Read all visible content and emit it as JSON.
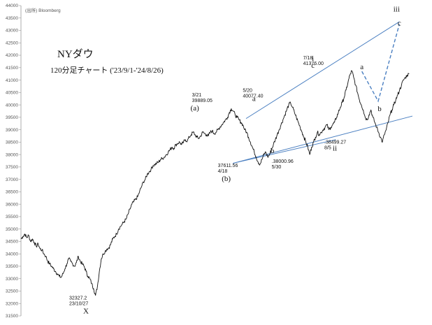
{
  "chart_data": {
    "type": "line",
    "title": "NYダウ",
    "subtitle": "120分足チャート ('23/9/1-'24/8/26)",
    "source": "(出所) Bloomberg",
    "xlabel": "",
    "ylabel": "",
    "ylim": [
      31500,
      44000
    ],
    "y_ticks": [
      31500,
      32000,
      32500,
      33000,
      33500,
      34000,
      34500,
      35000,
      35500,
      36000,
      36500,
      37000,
      37500,
      38000,
      38500,
      39000,
      39500,
      40000,
      40500,
      41000,
      41500,
      42000,
      42500,
      43000,
      43500,
      44000
    ],
    "y_tick_labels": [
      "31500",
      "32000",
      "32500",
      "33000",
      "33500",
      "34000",
      "34500",
      "35000",
      "35500",
      "36000",
      "36500",
      "37000",
      "37500",
      "38000",
      "38500",
      "39000",
      "39500",
      "40000",
      "40500",
      "41000",
      "41500",
      "42000",
      "42500",
      "43000",
      "43500",
      "44000"
    ],
    "series": [
      {
        "values": [
          34600,
          34700,
          34800,
          34650,
          34750,
          34500,
          34600,
          34450,
          34300,
          34400,
          34200,
          34150,
          34000,
          33900,
          33700,
          33600,
          33500,
          33400,
          33300,
          33200,
          33100,
          33050,
          33200,
          33400,
          33600,
          33800,
          33700,
          33600,
          33500,
          33650,
          33900,
          33700,
          33600,
          33500,
          33300,
          33100,
          33000,
          32800,
          32600,
          32327,
          32700,
          33300,
          33800,
          34000,
          34100,
          34200,
          34250,
          34400,
          34600,
          34700,
          34800,
          35000,
          35100,
          35200,
          35300,
          35400,
          35600,
          35800,
          36000,
          36100,
          36200,
          36300,
          36500,
          36700,
          36900,
          37000,
          37200,
          37300,
          37400,
          37550,
          37600,
          37650,
          37700,
          37800,
          37850,
          37900,
          38000,
          38100,
          38200,
          38300,
          38250,
          38400,
          38450,
          38500,
          38400,
          38500,
          38600,
          38550,
          38700,
          38800,
          38900,
          38800,
          38700,
          38650,
          38750,
          38900,
          38850,
          38800,
          38750,
          38900,
          38950,
          38850,
          38900,
          39000,
          39100,
          39200,
          39300,
          39400,
          39500,
          39700,
          39850,
          39750,
          39600,
          39500,
          39400,
          39300,
          39200,
          39000,
          38900,
          38700,
          38500,
          38300,
          38100,
          37900,
          37700,
          37611,
          37800,
          38000,
          38100,
          37900,
          38000,
          38200,
          38400,
          38600,
          38800,
          39000,
          39200,
          39400,
          39600,
          39800,
          40000,
          40077,
          39900,
          39700,
          39500,
          39300,
          39100,
          38900,
          38700,
          38500,
          38300,
          38000,
          38300,
          38500,
          38700,
          38900,
          38800,
          38900,
          39000,
          39100,
          39200,
          39000,
          39100,
          39200,
          39300,
          39500,
          39700,
          39900,
          40100,
          40300,
          40600,
          40900,
          41200,
          41376,
          41100,
          40800,
          40500,
          40200,
          40000,
          39800,
          39500,
          39400,
          39600,
          39800,
          39500,
          39300,
          39100,
          38900,
          38700,
          38499,
          38800,
          39000,
          39300,
          39600,
          39800,
          40000,
          40200,
          40400,
          40600,
          40800,
          41000,
          41100,
          41200,
          41250
        ],
        "color": "#111111"
      }
    ],
    "wave_projection": [
      {
        "pos": 209,
        "value": 41350
      },
      {
        "pos": 219,
        "value": 40150
      },
      {
        "pos": 232,
        "value": 43250
      }
    ],
    "upper_trendline": [
      {
        "pos": 138,
        "value": 39450
      },
      {
        "pos": 232,
        "value": 43350
      }
    ],
    "lower_trendline": [
      {
        "pos": 130,
        "value": 37650
      },
      {
        "pos": 240,
        "value": 39550
      }
    ],
    "early_trendline": [
      {
        "pos": 130,
        "value": 37650
      },
      {
        "pos": 193,
        "value": 38600
      }
    ],
    "annotations": [
      {
        "pos": 110,
        "value": 39889,
        "lines": [
          "3/21",
          "39889.05"
        ],
        "dx": -12,
        "dy": -16
      },
      {
        "pos": 125,
        "value": 37611,
        "lines": [
          "37611.56",
          "4/18"
        ],
        "dx": -10,
        "dy": 4
      },
      {
        "pos": 142,
        "value": 40077,
        "lines": [
          "5/20",
          "40077.40"
        ],
        "dx": -14,
        "dy": -16
      },
      {
        "pos": 155,
        "value": 38000,
        "lines": [
          ".38000.96",
          "5/30"
        ],
        "dx": -3,
        "dy": 12
      },
      {
        "pos": 179,
        "value": 41376,
        "lines": [
          "7/18",
          "41376.00"
        ],
        "dx": -14,
        "dy": -16
      },
      {
        "pos": 192,
        "value": 38499,
        "lines": [
          ".38499.27",
          "8/5"
        ],
        "dx": -14,
        "dy": 2
      },
      {
        "pos": 39,
        "value": 32327,
        "lines": [
          "32327.2",
          "23/10/27"
        ],
        "dx": -22,
        "dy": 6
      }
    ],
    "wave_labels": [
      {
        "text": "X",
        "pos": 39,
        "value": 32327,
        "dx": 2,
        "dy": 26
      },
      {
        "text": "(a)",
        "pos": 110,
        "value": 39889,
        "dx": -8,
        "dy": 4
      },
      {
        "text": "(b)",
        "pos": 125,
        "value": 37611,
        "dx": 2,
        "dy": 24
      },
      {
        "text": "a",
        "pos": 142,
        "value": 40077,
        "dx": 2,
        "dy": -3
      },
      {
        "text": "b",
        "pos": 155,
        "value": 38000,
        "dx": -2,
        "dy": -2
      },
      {
        "text": "i",
        "pos": 179,
        "value": 41376,
        "dx": 0,
        "dy": -14
      },
      {
        "text": "c",
        "pos": 179,
        "value": 41376,
        "dx": 0,
        "dy": -4
      },
      {
        "text": "ii",
        "pos": 192,
        "value": 38499,
        "dx": 1,
        "dy": 12
      },
      {
        "text": "a",
        "pos": 209,
        "value": 41350,
        "dx": 0,
        "dy": -3
      },
      {
        "text": "b",
        "pos": 219,
        "value": 40150,
        "dx": 2,
        "dy": 14
      },
      {
        "text": "iii",
        "pos": 232,
        "value": 43250,
        "dx": -4,
        "dy": -18
      },
      {
        "text": "c",
        "pos": 232,
        "value": 43250,
        "dx": 0,
        "dy": 2
      }
    ],
    "grid": false,
    "legend": "none"
  }
}
